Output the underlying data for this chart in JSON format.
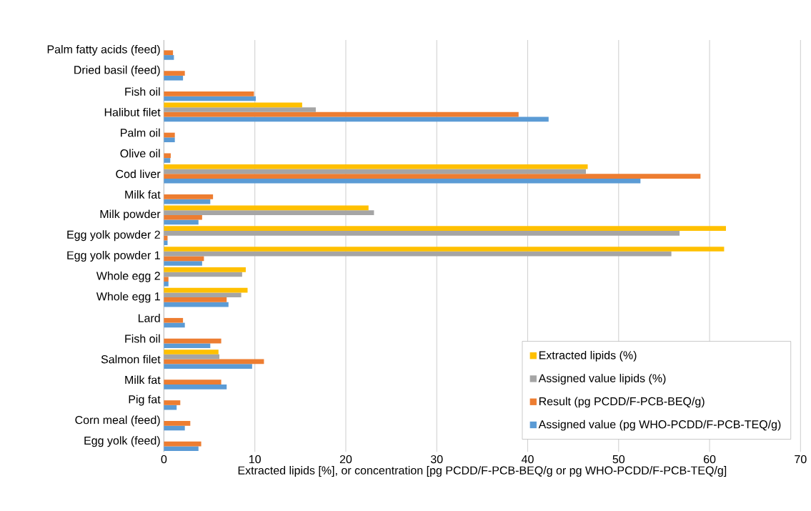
{
  "chart_data": {
    "type": "bar",
    "orientation": "horizontal",
    "xlabel": "Extracted lipids [%], or concentration [pg PCDD/F-PCB-BEQ/g or pg WHO-PCDD/F-PCB-TEQ/g]",
    "categories": [
      "Palm fatty acids (feed)",
      "Dried basil (feed)",
      "Fish oil",
      "Halibut filet",
      "Palm oil",
      "Olive oil",
      "Cod liver",
      "Milk fat",
      "Milk powder",
      "Egg yolk powder 2",
      "Egg yolk powder 1",
      "Whole egg 2",
      "Whole egg 1",
      "Lard",
      "Fish oil",
      "Salmon filet",
      "Milk fat",
      "Pig fat",
      "Corn meal (feed)",
      "Egg yolk (feed)"
    ],
    "series": [
      {
        "name": "Extracted lipids (%)",
        "color": "#ffc000",
        "values": [
          null,
          null,
          null,
          15.2,
          null,
          null,
          46.6,
          null,
          22.5,
          61.8,
          61.6,
          9.0,
          9.2,
          null,
          null,
          6.0,
          null,
          null,
          null,
          null
        ]
      },
      {
        "name": "Assigned value lipids (%)",
        "color": "#a5a5a5",
        "values": [
          null,
          null,
          null,
          16.7,
          null,
          null,
          46.4,
          null,
          23.1,
          56.7,
          55.8,
          8.6,
          8.5,
          null,
          null,
          6.1,
          null,
          null,
          null,
          null
        ]
      },
      {
        "name": "Result (pg PCDD/F-PCB-BEQ/g)",
        "color": "#ed7d31",
        "values": [
          1.0,
          2.3,
          9.9,
          39.0,
          1.2,
          0.75,
          59.0,
          5.4,
          4.2,
          0.4,
          4.4,
          0.5,
          6.9,
          2.1,
          6.3,
          11.0,
          6.3,
          1.8,
          2.9,
          4.1
        ]
      },
      {
        "name": "Assigned value (pg WHO-PCDD/F-PCB-TEQ/g)",
        "color": "#5b9bd5",
        "values": [
          1.1,
          2.1,
          10.1,
          42.3,
          1.2,
          0.7,
          52.4,
          5.1,
          3.8,
          0.4,
          4.2,
          0.5,
          7.1,
          2.3,
          5.1,
          9.7,
          6.9,
          1.4,
          2.3,
          3.8
        ]
      }
    ],
    "xlim": [
      0,
      70
    ],
    "xticks": [
      0,
      10,
      20,
      30,
      40,
      50,
      60,
      70
    ],
    "grid": "x",
    "legend": "bottom right"
  }
}
